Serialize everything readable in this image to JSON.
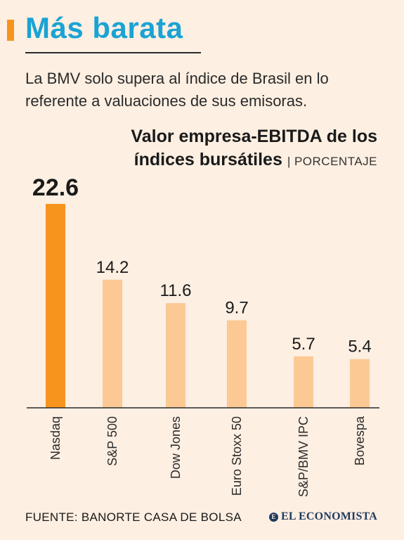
{
  "header": {
    "title": "Más barata",
    "subtitle": "La BMV solo supera al índice de Brasil en lo referente a valuaciones de sus emisoras."
  },
  "chart_data": {
    "type": "bar",
    "title_line1": "Valor empresa-EBITDA de los",
    "title_line2": "índices bursátiles",
    "unit": "| PORCENTAJE",
    "categories": [
      "Nasdaq",
      "S&P 500",
      "Dow Jones",
      "Euro Stoxx 50",
      "S&P/BMV IPC",
      "Bovespa"
    ],
    "values": [
      22.6,
      14.2,
      11.6,
      9.7,
      5.7,
      5.4
    ],
    "value_labels": [
      "22.6",
      "14.2",
      "11.6",
      "9.7",
      "5.7",
      "5.4"
    ],
    "highlight_index": 0,
    "colors": {
      "highlight": "#f7941d",
      "bar": "#fcc994",
      "axis": "#2a2a2a"
    },
    "ylim": [
      0,
      22.6
    ],
    "grid": false
  },
  "footer": {
    "source": "FUENTE: BANORTE CASA DE BOLSA",
    "logo_text": "EL ECONOMISTA",
    "logo_mark": "E"
  }
}
